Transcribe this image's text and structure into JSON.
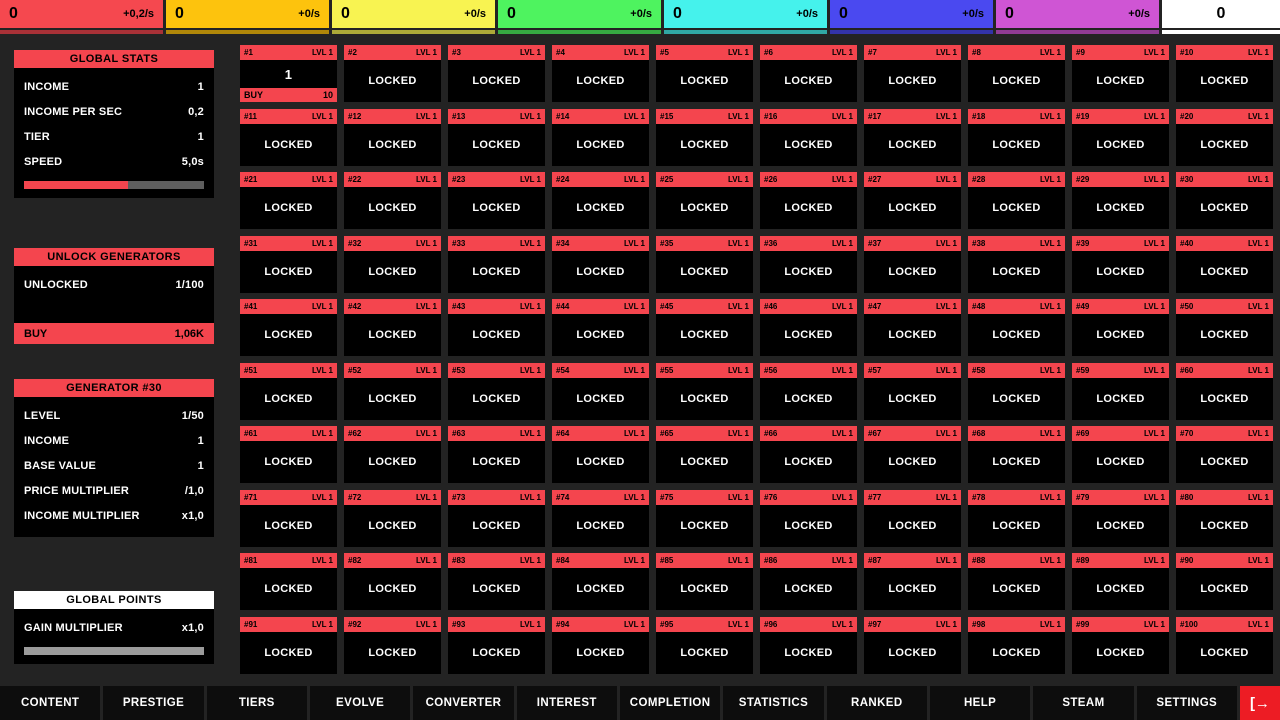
{
  "top_bar": {
    "currencies": [
      {
        "value": "0",
        "rate": "+0,2/s",
        "color": "#f5484f",
        "bar_color": "#a93137"
      },
      {
        "value": "0",
        "rate": "+0/s",
        "color": "#fdc30d",
        "bar_color": "#b08709"
      },
      {
        "value": "0",
        "rate": "+0/s",
        "color": "#f8f351",
        "bar_color": "#acaa38"
      },
      {
        "value": "0",
        "rate": "+0/s",
        "color": "#4ef35f",
        "bar_color": "#36a942"
      },
      {
        "value": "0",
        "rate": "+0/s",
        "color": "#45f2ec",
        "bar_color": "#30a8a4"
      },
      {
        "value": "0",
        "rate": "+0/s",
        "color": "#4a49f0",
        "bar_color": "#3333a8"
      },
      {
        "value": "0",
        "rate": "+0/s",
        "color": "#cf55d4",
        "bar_color": "#903b94"
      },
      {
        "value": "0",
        "rate": "",
        "color": "#ffffff",
        "bar_color": "#ffffff"
      }
    ]
  },
  "sidebar": {
    "global_stats": {
      "title": "GLOBAL STATS",
      "rows": [
        {
          "label": "INCOME",
          "value": "1"
        },
        {
          "label": "INCOME PER SEC",
          "value": "0,2"
        },
        {
          "label": "TIER",
          "value": "1"
        },
        {
          "label": "SPEED",
          "value": "5,0s"
        }
      ],
      "progress_pct": 58
    },
    "unlock_generators": {
      "title": "UNLOCK GENERATORS",
      "rows": [
        {
          "label": "UNLOCKED",
          "value": "1/100"
        }
      ],
      "buy_label": "BUY",
      "buy_value": "1,06K"
    },
    "generator_30": {
      "title": "GENERATOR #30",
      "rows": [
        {
          "label": "LEVEL",
          "value": "1/50"
        },
        {
          "label": "INCOME",
          "value": "1"
        },
        {
          "label": "BASE VALUE",
          "value": "1"
        },
        {
          "label": "PRICE MULTIPLIER",
          "value": "/1,0"
        },
        {
          "label": "INCOME MULTIPLIER",
          "value": "x1,0"
        }
      ]
    },
    "global_points": {
      "title": "GLOBAL POINTS",
      "rows": [
        {
          "label": "GAIN MULTIPLIER",
          "value": "x1,0"
        }
      ],
      "progress_pct": 0
    }
  },
  "grid": {
    "lvl_label": "LVL 1",
    "locked_label": "LOCKED",
    "header_color": "#f4454e",
    "ids": [
      "#1",
      "#2",
      "#3",
      "#4",
      "#5",
      "#6",
      "#7",
      "#8",
      "#9",
      "#10",
      "#11",
      "#12",
      "#13",
      "#14",
      "#15",
      "#16",
      "#17",
      "#18",
      "#19",
      "#20",
      "#21",
      "#22",
      "#23",
      "#24",
      "#25",
      "#26",
      "#27",
      "#28",
      "#29",
      "#30",
      "#31",
      "#32",
      "#33",
      "#34",
      "#35",
      "#36",
      "#37",
      "#38",
      "#39",
      "#40",
      "#41",
      "#42",
      "#43",
      "#44",
      "#45",
      "#46",
      "#47",
      "#48",
      "#49",
      "#50",
      "#51",
      "#52",
      "#53",
      "#54",
      "#55",
      "#56",
      "#57",
      "#58",
      "#59",
      "#60",
      "#61",
      "#62",
      "#63",
      "#64",
      "#65",
      "#66",
      "#67",
      "#68",
      "#69",
      "#70",
      "#71",
      "#72",
      "#73",
      "#74",
      "#75",
      "#76",
      "#77",
      "#78",
      "#79",
      "#80",
      "#81",
      "#82",
      "#83",
      "#84",
      "#85",
      "#86",
      "#87",
      "#88",
      "#89",
      "#90",
      "#91",
      "#92",
      "#93",
      "#94",
      "#95",
      "#96",
      "#97",
      "#98",
      "#99",
      "#100"
    ],
    "active_tile": {
      "id": "#1",
      "value": "1",
      "buy_label": "BUY",
      "buy_cost": "10"
    }
  },
  "nav": {
    "items": [
      "CONTENT",
      "PRESTIGE",
      "TIERS",
      "EVOLVE",
      "CONVERTER",
      "INTEREST",
      "COMPLETION",
      "STATISTICS",
      "RANKED",
      "HELP",
      "STEAM",
      "SETTINGS"
    ],
    "exit_icon": "[→",
    "exit_color": "#ed1c24"
  }
}
